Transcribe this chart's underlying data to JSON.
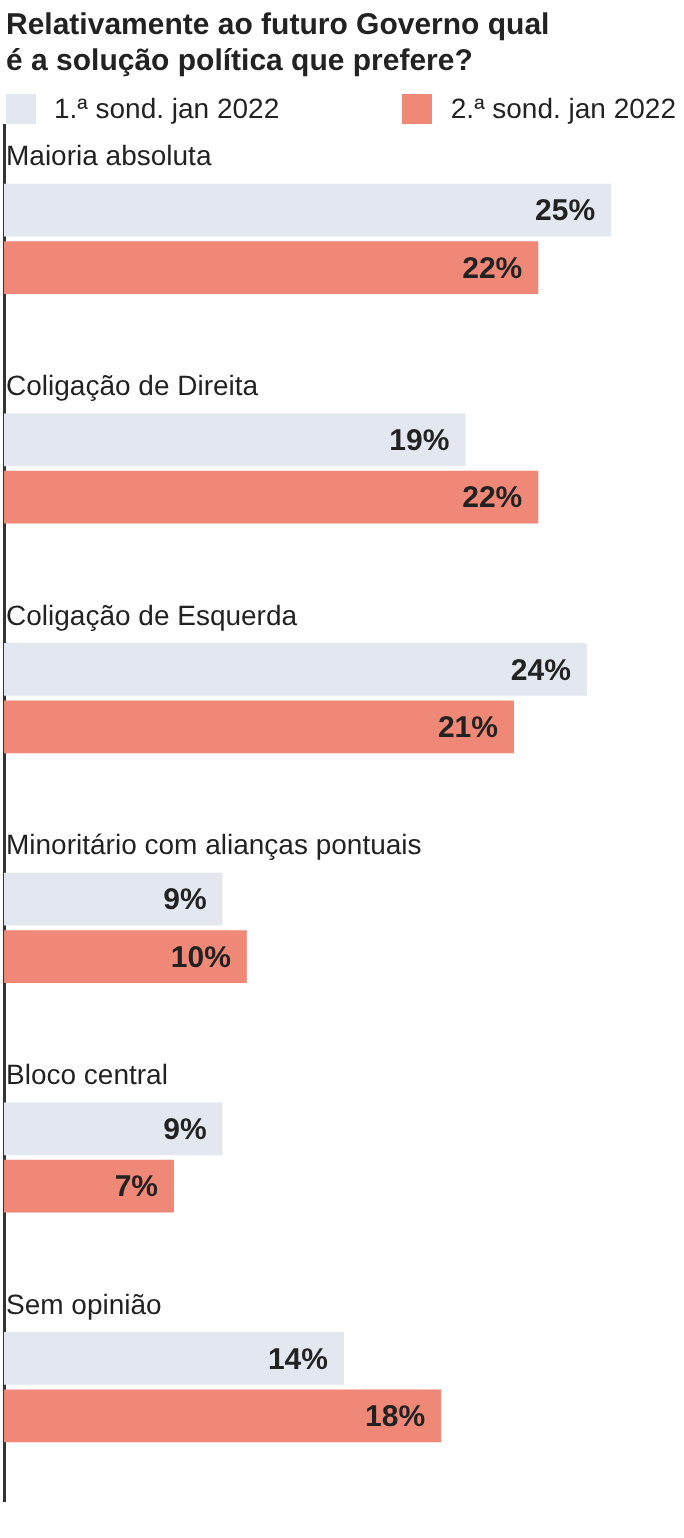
{
  "chart_data": {
    "type": "bar",
    "orientation": "horizontal",
    "title": "Relativamente ao futuro Governo qual é a solução política que prefere?",
    "categories": [
      "Maioria absoluta",
      "Coligação de Direita",
      "Coligação de Esquerda",
      "Minoritário com alianças pontuais",
      "Bloco central",
      "Sem opinião"
    ],
    "series": [
      {
        "name": "1.ª sond. jan 2022",
        "color": "#e3e7ef",
        "values": [
          25,
          19,
          24,
          9,
          9,
          14
        ],
        "value_labels": [
          "25%",
          "19%",
          "24%",
          "9%",
          "9%",
          "14%"
        ]
      },
      {
        "name": "2.ª sond. jan 2022",
        "color": "#f08878",
        "values": [
          22,
          22,
          21,
          10,
          7,
          18
        ],
        "value_labels": [
          "22%",
          "22%",
          "21%",
          "10%",
          "7%",
          "18%"
        ]
      }
    ],
    "tick_labels": false,
    "legend": "top"
  }
}
